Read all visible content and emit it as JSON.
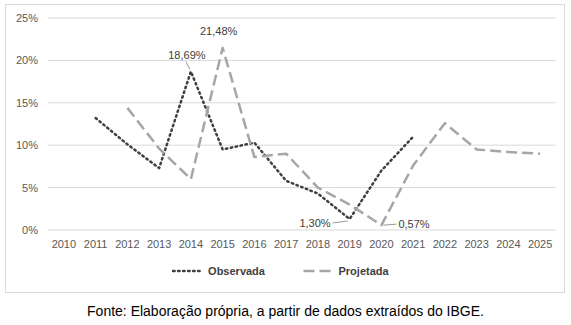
{
  "chart_data": {
    "type": "line",
    "caption": "Fonte: Elaboração própria, a partir de dados extraídos do IBGE.",
    "categories": [
      "2010",
      "2011",
      "2012",
      "2013",
      "2014",
      "2015",
      "2016",
      "2017",
      "2018",
      "2019",
      "2020",
      "2021",
      "2022",
      "2023",
      "2024",
      "2025"
    ],
    "series": [
      {
        "name": "Observada",
        "color": "#404040",
        "line_style": "dotted",
        "values": [
          null,
          13.2,
          10.1,
          7.3,
          18.69,
          9.5,
          10.3,
          5.8,
          4.3,
          1.3,
          7.0,
          11.0,
          null,
          null,
          null,
          null
        ],
        "value_labels": [
          null,
          null,
          null,
          null,
          "18,69%",
          null,
          null,
          null,
          null,
          "1,30%",
          null,
          null,
          null,
          null,
          null,
          null
        ]
      },
      {
        "name": "Projetada",
        "color": "#a6a6a6",
        "line_style": "dashed",
        "values": [
          null,
          null,
          14.4,
          9.6,
          6.0,
          21.48,
          8.6,
          9.0,
          5.0,
          3.0,
          0.57,
          7.6,
          12.6,
          9.5,
          9.2,
          9.0
        ],
        "value_labels": [
          null,
          null,
          null,
          null,
          null,
          "21,48%",
          null,
          null,
          null,
          null,
          "0,57%",
          null,
          null,
          null,
          null,
          null
        ]
      }
    ],
    "ylim": [
      0,
      25
    ],
    "yticks": [
      {
        "value": 0,
        "label": "0%"
      },
      {
        "value": 5,
        "label": "5%"
      },
      {
        "value": 10,
        "label": "10%"
      },
      {
        "value": 15,
        "label": "15%"
      },
      {
        "value": 20,
        "label": "20%"
      },
      {
        "value": 25,
        "label": "25%"
      }
    ],
    "grid": true,
    "legend": "bottom"
  }
}
